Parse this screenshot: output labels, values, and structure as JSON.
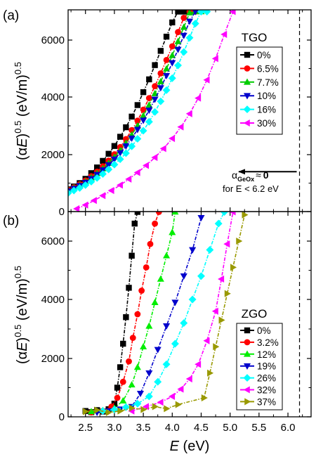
{
  "chart_data": [
    {
      "type": "scatter",
      "panel_label": "(a)",
      "legend_title": "TGO",
      "xlim": [
        2.2,
        6.4
      ],
      "ylim": [
        0,
        7000
      ],
      "yticks": [
        0,
        2000,
        4000,
        6000
      ],
      "ylabel": {
        "prefix": "(",
        "alpha": "α",
        "var": "E",
        "paren": ")",
        "sup": "0.5",
        "unit": " (eV/m)",
        "unit_sup": "0.5"
      },
      "dashed_x": 6.2,
      "annotation": {
        "alpha": "α",
        "sub": "GeOx",
        "approx": "≈",
        "zero": "0",
        "line2": "for E < 6.2 eV",
        "arrow": {
          "from": 6.2,
          "to": 5.15,
          "y": 1400
        }
      },
      "series": [
        {
          "name": "0%",
          "color": "#000000",
          "marker": "square",
          "x": [
            2.2,
            2.3,
            2.4,
            2.5,
            2.6,
            2.7,
            2.8,
            2.9,
            3.0,
            3.1,
            3.2,
            3.3,
            3.4,
            3.5,
            3.6,
            3.7,
            3.8,
            3.9,
            4.0,
            4.1,
            4.2,
            4.3
          ],
          "y": [
            780,
            880,
            1000,
            1150,
            1350,
            1550,
            1780,
            2030,
            2300,
            2620,
            2950,
            3320,
            3720,
            4170,
            4620,
            5120,
            5620,
            6120,
            6620,
            7000,
            7000,
            7000
          ]
        },
        {
          "name": "6.5%",
          "color": "#ff0000",
          "marker": "circle",
          "x": [
            2.2,
            2.3,
            2.4,
            2.5,
            2.6,
            2.7,
            2.8,
            2.9,
            3.0,
            3.1,
            3.2,
            3.3,
            3.4,
            3.5,
            3.6,
            3.7,
            3.8,
            3.9,
            4.0,
            4.1,
            4.2,
            4.3,
            4.4
          ],
          "y": [
            760,
            850,
            960,
            1090,
            1240,
            1400,
            1590,
            1790,
            2010,
            2260,
            2540,
            2850,
            3180,
            3560,
            3960,
            4380,
            4830,
            5300,
            5780,
            6280,
            6780,
            7000,
            7000
          ]
        },
        {
          "name": "7.7%",
          "color": "#00cc00",
          "marker": "triangle-up",
          "x": [
            2.2,
            2.3,
            2.4,
            2.5,
            2.6,
            2.7,
            2.8,
            2.9,
            3.0,
            3.1,
            3.2,
            3.3,
            3.4,
            3.5,
            3.6,
            3.7,
            3.8,
            3.9,
            4.0,
            4.1,
            4.2,
            4.3,
            4.4,
            4.5
          ],
          "y": [
            740,
            830,
            930,
            1050,
            1190,
            1340,
            1510,
            1700,
            1910,
            2140,
            2400,
            2690,
            3000,
            3350,
            3720,
            4120,
            4540,
            4990,
            5460,
            5950,
            6450,
            6960,
            7000,
            7000
          ]
        },
        {
          "name": "10%",
          "color": "#0000cc",
          "marker": "triangle-down",
          "x": [
            2.2,
            2.3,
            2.4,
            2.5,
            2.6,
            2.7,
            2.8,
            2.9,
            3.0,
            3.1,
            3.2,
            3.3,
            3.4,
            3.5,
            3.6,
            3.7,
            3.8,
            3.9,
            4.0,
            4.1,
            4.2,
            4.3,
            4.4,
            4.5
          ],
          "y": [
            720,
            810,
            910,
            1020,
            1150,
            1300,
            1460,
            1640,
            1840,
            2060,
            2300,
            2570,
            2870,
            3190,
            3540,
            3920,
            4320,
            4750,
            5200,
            5670,
            6160,
            6660,
            7000,
            7000
          ]
        },
        {
          "name": "16%",
          "color": "#00ffff",
          "marker": "diamond",
          "x": [
            2.2,
            2.3,
            2.4,
            2.5,
            2.6,
            2.7,
            2.8,
            2.9,
            3.0,
            3.1,
            3.2,
            3.3,
            3.4,
            3.5,
            3.6,
            3.7,
            3.8,
            3.9,
            4.0,
            4.1,
            4.2,
            4.3,
            4.4,
            4.5,
            4.6
          ],
          "y": [
            650,
            740,
            830,
            930,
            1050,
            1180,
            1320,
            1480,
            1650,
            1840,
            2050,
            2290,
            2550,
            2830,
            3140,
            3480,
            3850,
            4240,
            4660,
            5110,
            5580,
            6080,
            6580,
            7000,
            7000
          ]
        },
        {
          "name": "30%",
          "color": "#ff00ff",
          "marker": "triangle-left",
          "x": [
            2.35,
            2.5,
            2.65,
            2.8,
            2.95,
            3.1,
            3.25,
            3.4,
            3.55,
            3.7,
            3.85,
            4.0,
            4.15,
            4.3,
            4.45,
            4.6,
            4.75,
            4.9,
            5.05
          ],
          "y": [
            100,
            230,
            390,
            560,
            740,
            930,
            1140,
            1370,
            1620,
            1900,
            2210,
            2560,
            2960,
            3420,
            3960,
            4600,
            5350,
            6200,
            7000
          ]
        }
      ]
    },
    {
      "type": "scatter",
      "panel_label": "(b)",
      "legend_title": "ZGO",
      "xlim": [
        2.2,
        6.4
      ],
      "ylim": [
        0,
        7000
      ],
      "yticks": [
        0,
        2000,
        4000,
        6000
      ],
      "xticks": [
        2.5,
        3.0,
        3.5,
        4.0,
        4.5,
        5.0,
        5.5,
        6.0
      ],
      "xtick_labels": [
        "2.5",
        "3.0",
        "3.5",
        "4.0",
        "4.5",
        "5.0",
        "5.5",
        "6.0"
      ],
      "xlabel": {
        "var": "E",
        "unit": " (eV)"
      },
      "ylabel": {
        "prefix": "(",
        "alpha": "α",
        "var": "E",
        "paren": ")",
        "sup": "0.5",
        "unit": " (eV/m)",
        "unit_sup": "0.5"
      },
      "dashed_x": 6.2,
      "series": [
        {
          "name": "0%",
          "color": "#000000",
          "marker": "square",
          "x": [
            2.5,
            2.6,
            2.7,
            2.8,
            2.9,
            3.0,
            3.05,
            3.1,
            3.15,
            3.2,
            3.25,
            3.3,
            3.35,
            3.4
          ],
          "y": [
            200,
            160,
            230,
            180,
            260,
            450,
            1000,
            1700,
            2500,
            3400,
            4400,
            5500,
            6600,
            7000
          ]
        },
        {
          "name": "3.2%",
          "color": "#ff0000",
          "marker": "circle",
          "x": [
            2.6,
            2.8,
            2.95,
            3.05,
            3.15,
            3.25,
            3.32,
            3.4,
            3.47,
            3.55,
            3.62,
            3.7,
            3.77
          ],
          "y": [
            150,
            200,
            350,
            650,
            1200,
            1900,
            2700,
            3500,
            4300,
            5100,
            5900,
            6600,
            7000
          ]
        },
        {
          "name": "12%",
          "color": "#00ee00",
          "marker": "triangle-up",
          "x": [
            2.6,
            2.8,
            3.0,
            3.15,
            3.3,
            3.4,
            3.5,
            3.6,
            3.7,
            3.8,
            3.9,
            4.0,
            4.05
          ],
          "y": [
            180,
            220,
            300,
            550,
            1100,
            1700,
            2400,
            3100,
            3900,
            4700,
            5500,
            6300,
            7000
          ]
        },
        {
          "name": "19%",
          "color": "#0000cc",
          "marker": "triangle-down",
          "x": [
            2.7,
            2.9,
            3.1,
            3.3,
            3.45,
            3.6,
            3.75,
            3.9,
            4.05,
            4.2,
            4.35,
            4.5
          ],
          "y": [
            150,
            200,
            260,
            350,
            800,
            1500,
            2300,
            3100,
            3900,
            4800,
            5700,
            6800
          ]
        },
        {
          "name": "26%",
          "color": "#00ffff",
          "marker": "diamond",
          "x": [
            2.8,
            3.0,
            3.2,
            3.4,
            3.6,
            3.75,
            3.9,
            4.05,
            4.2,
            4.35,
            4.5,
            4.65,
            4.8,
            4.9
          ],
          "y": [
            200,
            250,
            330,
            450,
            700,
            1200,
            1800,
            2500,
            3200,
            4000,
            4800,
            5700,
            6600,
            7000
          ]
        },
        {
          "name": "32%",
          "color": "#ff00ff",
          "marker": "triangle-left",
          "x": [
            3.3,
            3.55,
            3.8,
            4.0,
            4.15,
            4.3,
            4.45,
            4.6,
            4.75,
            4.85,
            4.95,
            5.05
          ],
          "y": [
            200,
            350,
            500,
            700,
            950,
            1300,
            1800,
            2600,
            3600,
            4700,
            5900,
            7000
          ]
        },
        {
          "name": "37%",
          "color": "#999900",
          "marker": "triangle-right",
          "x": [
            2.5,
            2.7,
            2.9,
            3.1,
            3.3,
            3.5,
            3.7,
            3.9,
            4.1,
            4.55,
            4.65,
            4.75,
            4.85,
            4.95,
            5.05,
            5.15,
            5.25
          ],
          "y": [
            180,
            230,
            150,
            200,
            300,
            250,
            350,
            280,
            420,
            650,
            1500,
            2400,
            3300,
            4200,
            5100,
            6000,
            6900
          ]
        }
      ]
    }
  ]
}
